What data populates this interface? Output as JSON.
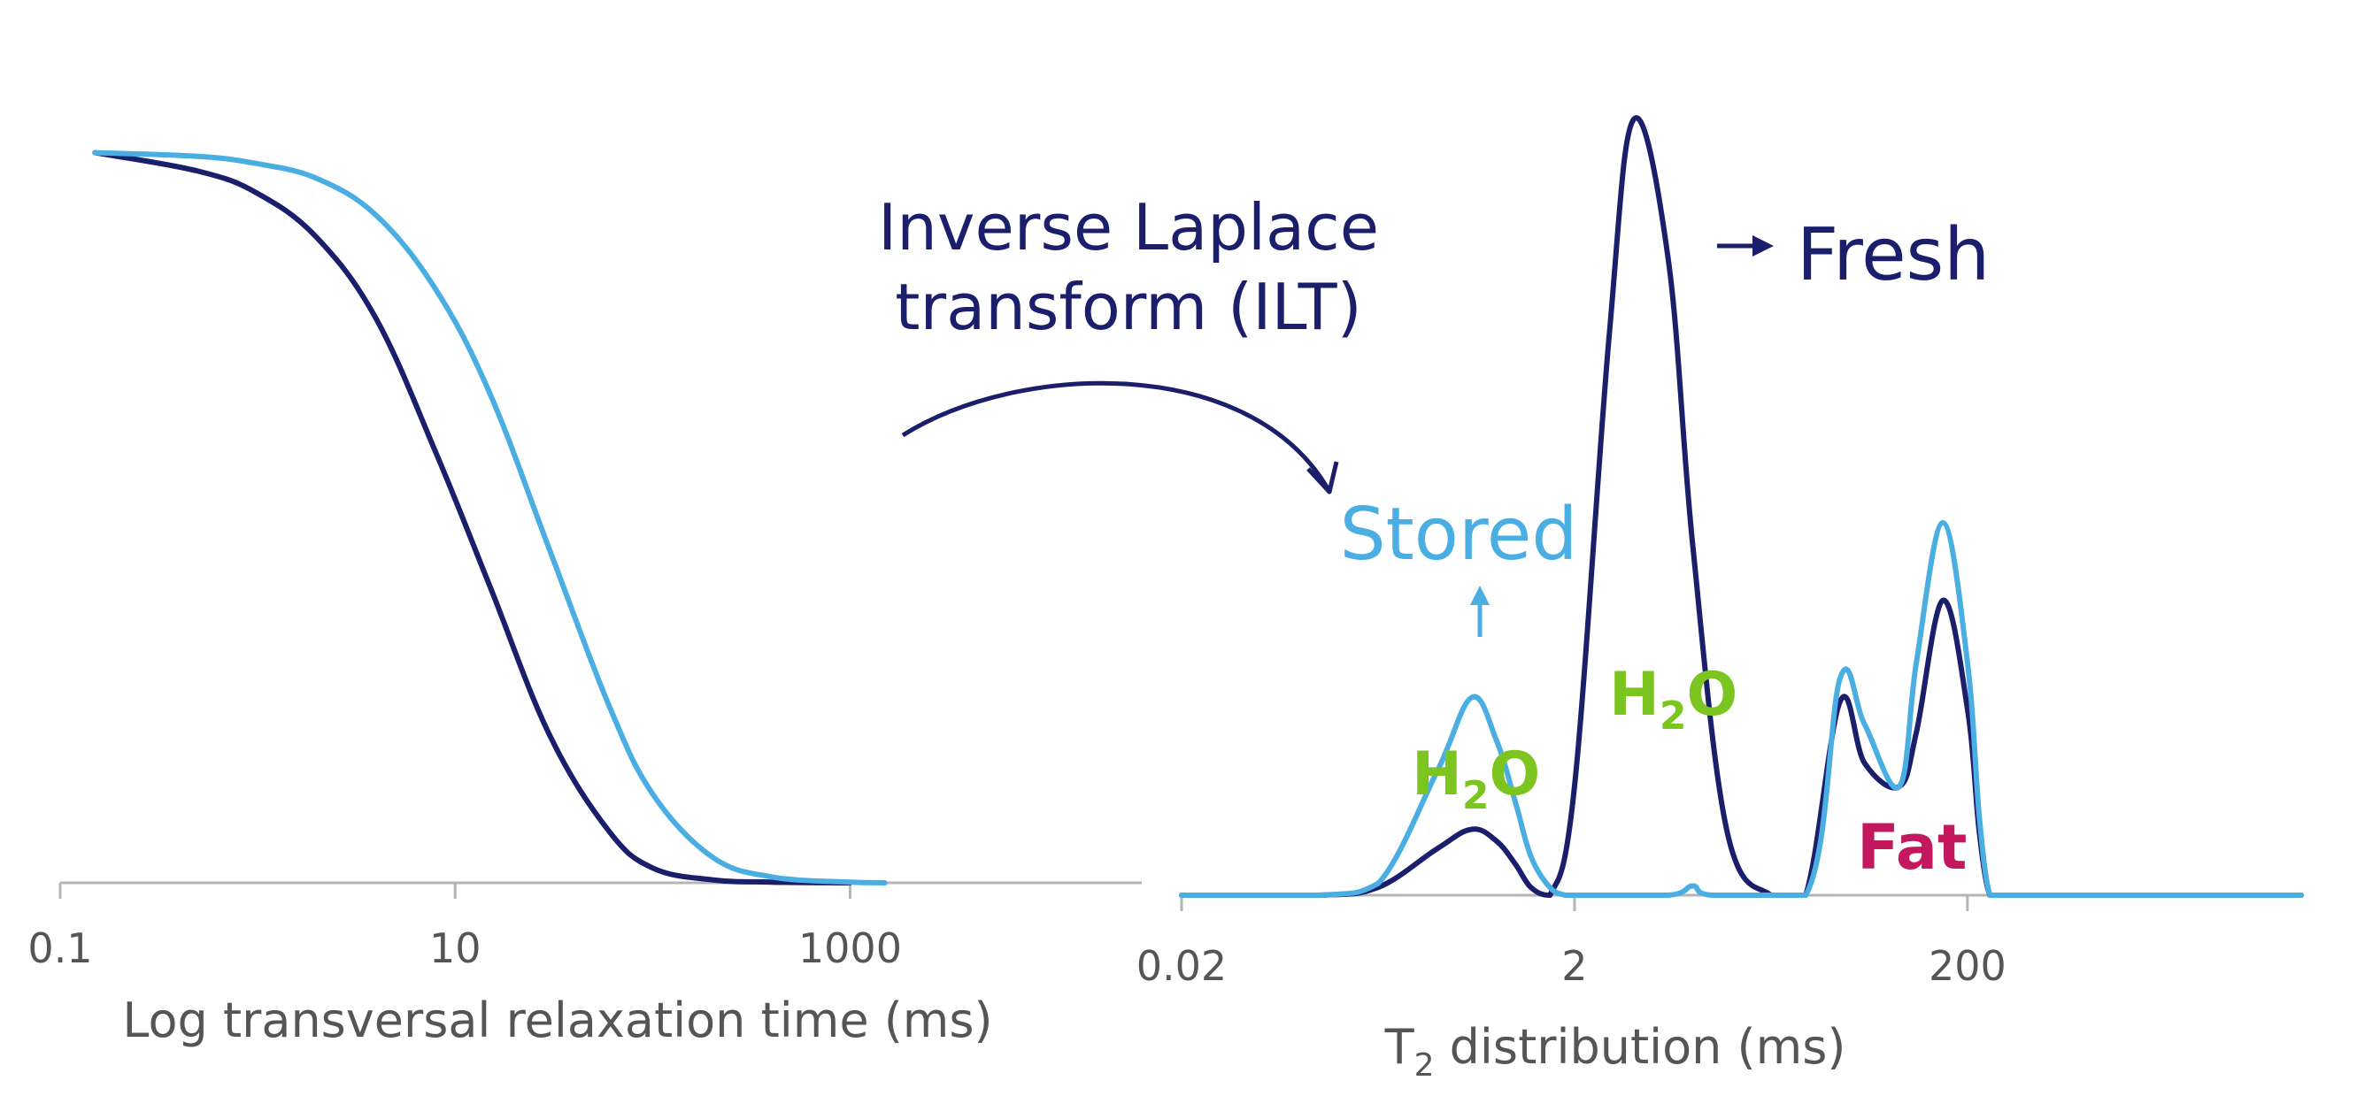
{
  "colors": {
    "fresh": "#1b1f6b",
    "stored": "#4aaee3",
    "water_label": "#7cc520",
    "fat_label": "#c3185e",
    "axis": "#b5b5b5",
    "text": "#555555"
  },
  "chart_data": [
    {
      "type": "line",
      "xscale": "log",
      "xlabel": "Log transversal relaxation time (ms)",
      "ylabel": "",
      "x_ticks": [
        "0.1",
        "10",
        "1000"
      ],
      "xlim": [
        0.1,
        30000
      ],
      "ylim": [
        0,
        1
      ],
      "grid": false,
      "series": [
        {
          "color_key": "fresh",
          "x": [
            0.15,
            0.5,
            1,
            2,
            4,
            8,
            15,
            30,
            60,
            100,
            200,
            400,
            1000
          ],
          "y": [
            0.985,
            0.96,
            0.93,
            0.87,
            0.76,
            0.58,
            0.4,
            0.2,
            0.07,
            0.02,
            0.004,
            0.001,
            0.0
          ]
        },
        {
          "color_key": "stored",
          "x": [
            0.15,
            0.5,
            1,
            2,
            4,
            8,
            15,
            30,
            60,
            100,
            200,
            400,
            1000,
            1500
          ],
          "y": [
            0.985,
            0.98,
            0.97,
            0.95,
            0.9,
            0.8,
            0.66,
            0.45,
            0.24,
            0.12,
            0.035,
            0.008,
            0.001,
            0.0
          ]
        }
      ]
    },
    {
      "type": "line",
      "xscale": "log",
      "xlabel_main": "T",
      "xlabel_sub": "2",
      "xlabel_rest": " distribution (ms)",
      "ylabel": "",
      "x_ticks": [
        "0.02",
        "2",
        "200"
      ],
      "xlim": [
        0.02,
        10000
      ],
      "ylim": [
        0,
        1
      ],
      "grid": false,
      "series": [
        {
          "color_key": "fresh",
          "x": [
            0.02,
            0.1,
            0.2,
            0.4,
            0.6,
            0.8,
            1.0,
            1.2,
            1.5,
            2,
            3,
            4,
            6,
            8,
            12,
            20,
            30,
            45,
            60,
            90,
            110,
            150,
            200,
            230,
            260,
            300,
            1000,
            10000
          ],
          "y": [
            0,
            0,
            0.01,
            0.06,
            0.085,
            0.07,
            0.04,
            0.01,
            0.0,
            0.14,
            0.72,
            1.0,
            0.82,
            0.45,
            0.08,
            0.0,
            0.0,
            0.25,
            0.17,
            0.14,
            0.21,
            0.38,
            0.24,
            0.08,
            0.0,
            0.0,
            0.0,
            0.0
          ]
        },
        {
          "color_key": "stored",
          "x": [
            0.02,
            0.1,
            0.2,
            0.4,
            0.6,
            0.8,
            1.0,
            1.2,
            1.5,
            1.8,
            2,
            6,
            8,
            10,
            30,
            45,
            60,
            90,
            110,
            150,
            200,
            230,
            260,
            300,
            1000,
            10000
          ],
          "y": [
            0,
            0,
            0.015,
            0.16,
            0.255,
            0.2,
            0.12,
            0.05,
            0.01,
            0.0,
            0.0,
            0.0,
            0.012,
            0.0,
            0.0,
            0.28,
            0.22,
            0.14,
            0.3,
            0.48,
            0.3,
            0.1,
            0.0,
            0.0,
            0.0,
            0.0
          ]
        }
      ]
    }
  ],
  "annotations": {
    "ilt_line1": "Inverse Laplace",
    "ilt_line2": "transform (ILT)",
    "fresh": "Fresh",
    "stored": "Stored",
    "water_main": "H",
    "water_sub": "2",
    "water_rest": "O",
    "fat": "Fat"
  }
}
